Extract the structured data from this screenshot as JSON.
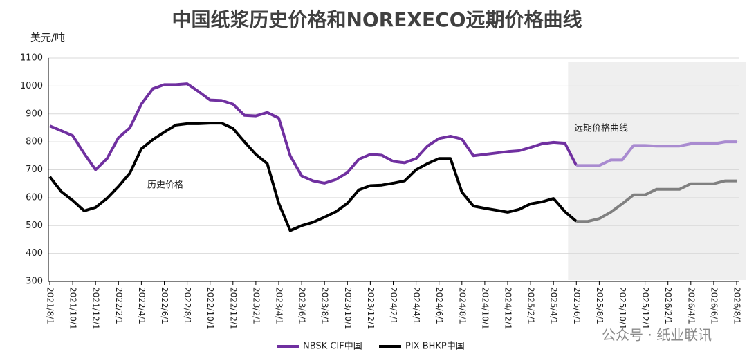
{
  "chart_data": {
    "type": "line",
    "title": "中国纸浆历史价格和NOREXECO远期价格曲线",
    "y_label": "美元/吨",
    "annotations": [
      "历史价格",
      "远期价格曲线"
    ],
    "watermark": "公众号 · 纸业联讯",
    "categories": [
      "2021/8/1",
      null,
      "2021/10/1",
      null,
      "2021/12/1",
      null,
      "2022/2/1",
      null,
      "2022/4/1",
      null,
      "2022/6/1",
      null,
      "2022/8/1",
      null,
      "2022/10/1",
      null,
      "2022/12/1",
      null,
      "2023/2/1",
      null,
      "2023/4/1",
      null,
      "2023/6/1",
      null,
      "2023/8/1",
      null,
      "2023/10/1",
      null,
      "2023/12/1",
      null,
      "2024/2/1",
      null,
      "2024/4/1",
      null,
      "2024/6/1",
      null,
      "2024/8/1",
      null,
      "2024/10/1",
      null,
      "2024/12/1",
      null,
      "2025/2/1",
      null,
      "2025/4/1",
      null,
      "2025/6/1",
      null,
      "2025/8/1",
      null,
      "2025/10/1",
      null,
      "2025/12/1",
      null,
      "2026/2/1",
      null,
      "2026/4/1",
      null,
      "2026/6/1",
      null,
      "2026/8/1"
    ],
    "shaded_from": "2025/6/1",
    "series": [
      {
        "name": "NBSK CIF中国",
        "color": "#7030a0",
        "forecast_color": "#a98bd0",
        "values": [
          857,
          840,
          822,
          758,
          700,
          740,
          815,
          850,
          935,
          990,
          1005,
          1005,
          1008,
          980,
          950,
          948,
          935,
          895,
          893,
          905,
          885,
          750,
          678,
          660,
          652,
          665,
          690,
          738,
          755,
          752,
          730,
          725,
          740,
          785,
          812,
          820,
          810,
          750,
          755,
          760,
          765,
          768,
          780,
          793,
          798,
          795,
          715,
          715,
          715,
          735,
          735,
          787,
          787,
          785,
          785,
          785,
          793,
          793,
          793,
          800,
          800
        ]
      },
      {
        "name": "PIX BHKP中国",
        "color": "#000000",
        "forecast_color": "#808080",
        "values": [
          675,
          622,
          590,
          553,
          565,
          598,
          640,
          688,
          775,
          808,
          835,
          860,
          865,
          865,
          867,
          867,
          848,
          800,
          755,
          722,
          580,
          482,
          500,
          512,
          530,
          550,
          580,
          628,
          643,
          645,
          652,
          660,
          700,
          722,
          740,
          740,
          620,
          570,
          562,
          555,
          548,
          558,
          578,
          585,
          597,
          550,
          515,
          515,
          525,
          548,
          578,
          610,
          610,
          630,
          630,
          630,
          650,
          650,
          650,
          660,
          660
        ]
      }
    ],
    "ylim": [
      300,
      1100
    ],
    "yticks": [
      300,
      400,
      500,
      600,
      700,
      800,
      900,
      1000,
      1100
    ],
    "grid": true,
    "legend": "bottom"
  }
}
